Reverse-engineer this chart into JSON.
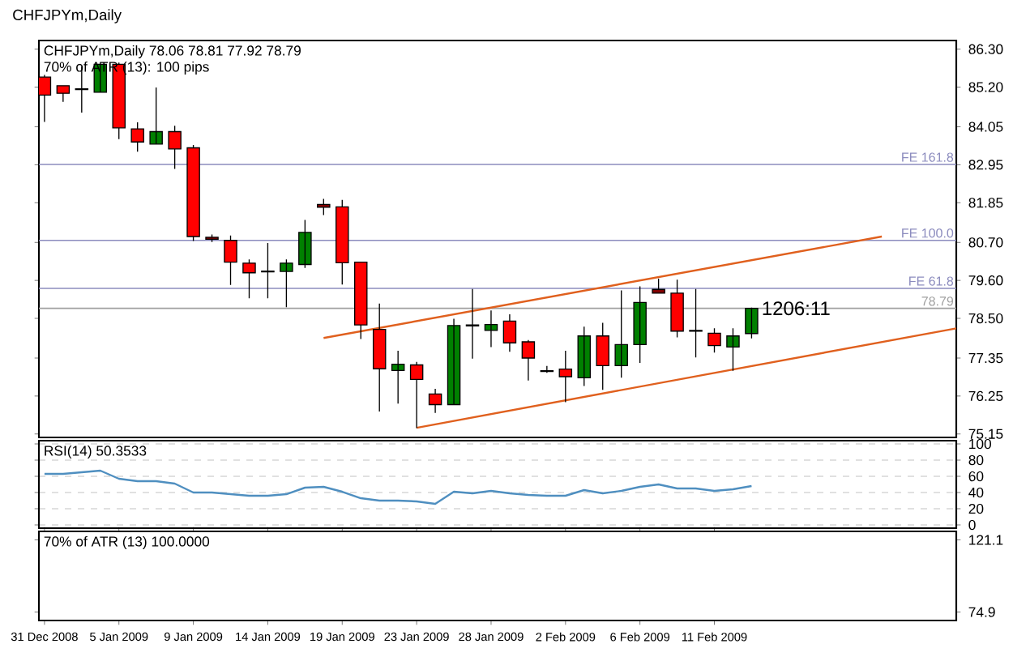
{
  "chart_data": [
    {
      "type": "candlestick",
      "title": "CHFJPYm,Daily",
      "subtitle": "CHFJPYm,Daily  78.06 78.81 77.92 78.79",
      "annotations": [
        "70% of ATR (13): 100 pips",
        "1206:11"
      ],
      "categories": [
        null,
        null,
        null,
        null,
        null,
        null,
        null,
        null,
        null,
        null,
        null,
        null,
        null,
        null,
        null,
        null,
        null,
        null,
        null,
        null,
        null,
        null,
        null,
        null,
        null,
        null,
        null,
        null,
        null,
        null,
        null,
        null,
        null,
        null,
        null,
        null,
        null,
        null,
        null,
        null,
        null,
        null,
        null,
        null,
        null,
        null,
        null,
        null,
        null,
        null
      ],
      "ohlc": [
        [
          85.49,
          85.55,
          84.19,
          84.97
        ],
        [
          85.24,
          85.24,
          84.77,
          85.02
        ],
        [
          85.13,
          85.8,
          84.46,
          85.15
        ],
        [
          85.05,
          85.91,
          85.05,
          85.86
        ],
        [
          85.86,
          85.91,
          83.69,
          84.02
        ],
        [
          83.99,
          84.18,
          83.33,
          83.61
        ],
        [
          83.55,
          85.19,
          83.55,
          83.91
        ],
        [
          83.91,
          84.08,
          82.83,
          83.41
        ],
        [
          83.44,
          83.52,
          80.74,
          80.87
        ],
        [
          80.85,
          80.93,
          80.71,
          80.79
        ],
        [
          80.76,
          80.9,
          79.47,
          80.13
        ],
        [
          80.1,
          80.21,
          79.08,
          79.82
        ],
        [
          79.85,
          80.68,
          79.08,
          79.87
        ],
        [
          79.86,
          80.21,
          78.82,
          80.1
        ],
        [
          80.06,
          81.35,
          79.96,
          80.99
        ],
        [
          81.8,
          81.96,
          81.49,
          81.72
        ],
        [
          81.73,
          81.93,
          79.48,
          80.11
        ],
        [
          80.13,
          80.13,
          77.9,
          78.31
        ],
        [
          78.18,
          78.93,
          75.8,
          77.04
        ],
        [
          76.99,
          77.56,
          76.03,
          77.17
        ],
        [
          77.15,
          77.24,
          75.32,
          76.73
        ],
        [
          76.31,
          76.46,
          75.76,
          76.0
        ],
        [
          76.0,
          78.49,
          76.0,
          78.29
        ],
        [
          78.31,
          79.35,
          77.33,
          78.28
        ],
        [
          78.15,
          78.73,
          77.67,
          78.32
        ],
        [
          78.42,
          78.62,
          77.53,
          77.79
        ],
        [
          77.82,
          77.87,
          76.7,
          77.35
        ],
        [
          76.96,
          77.12,
          76.92,
          76.98
        ],
        [
          77.03,
          77.56,
          76.07,
          76.81
        ],
        [
          76.78,
          78.26,
          76.54,
          77.99
        ],
        [
          77.99,
          78.37,
          76.43,
          77.13
        ],
        [
          77.13,
          79.31,
          76.78,
          77.74
        ],
        [
          77.74,
          79.43,
          77.21,
          78.96
        ],
        [
          79.34,
          79.65,
          79.23,
          79.23
        ],
        [
          79.23,
          79.62,
          77.95,
          78.13
        ],
        [
          78.13,
          79.35,
          77.37,
          78.15
        ],
        [
          78.07,
          78.21,
          77.51,
          77.71
        ],
        [
          77.67,
          78.21,
          76.98,
          77.99
        ],
        [
          78.06,
          78.81,
          77.92,
          78.79
        ],
        null,
        null,
        null,
        null,
        null,
        null,
        null,
        null,
        null,
        null,
        null
      ],
      "colors": [
        "#ff0000",
        "#ff0000",
        "#000000",
        "#008000",
        "#ff0000",
        "#ff0000",
        "#008000",
        "#ff0000",
        "#ff0000",
        "#800000",
        "#ff0000",
        "#ff0000",
        "#000000",
        "#008000",
        "#008000",
        "#800000",
        "#ff0000",
        "#ff0000",
        "#ff0000",
        "#008000",
        "#ff0000",
        "#ff0000",
        "#008000",
        "#800000",
        "#008000",
        "#ff0000",
        "#ff0000",
        "#000000",
        "#ff0000",
        "#008000",
        "#ff0000",
        "#008000",
        "#008000",
        "#800000",
        "#ff0000",
        "#000000",
        "#ff0000",
        "#008000",
        "#008000",
        null,
        null,
        null,
        null,
        null,
        null,
        null,
        null,
        null,
        null,
        null
      ],
      "series": [
        {
          "type": "line",
          "color": "#e0601e",
          "values": [
            null,
            null,
            null,
            null,
            null,
            null,
            null,
            null,
            null,
            null,
            null,
            null,
            null,
            null,
            null,
            77.93,
            null,
            null,
            null,
            null,
            null,
            null,
            null,
            null,
            null,
            null,
            null,
            null,
            null,
            null,
            null,
            null,
            null,
            null,
            null,
            null,
            null,
            null,
            null,
            null,
            null,
            null,
            null,
            null,
            null,
            80.87,
            null,
            null,
            null,
            null
          ]
        },
        {
          "type": "line",
          "color": "#e0601e",
          "values": [
            null,
            null,
            null,
            null,
            null,
            null,
            null,
            null,
            null,
            null,
            null,
            null,
            null,
            null,
            null,
            null,
            null,
            null,
            null,
            null,
            75.33,
            null,
            null,
            null,
            null,
            null,
            null,
            null,
            null,
            null,
            null,
            null,
            null,
            null,
            null,
            null,
            null,
            null,
            null,
            null,
            null,
            null,
            null,
            null,
            null,
            null,
            null,
            null,
            null,
            78.21
          ]
        }
      ],
      "ref_lines": [
        {
          "axis": "y",
          "value": 82.96,
          "label": "FE 161.8",
          "color": "#8c8cbe"
        },
        {
          "axis": "y",
          "value": 80.76,
          "label": "FE 100.0",
          "color": "#8c8cbe"
        },
        {
          "axis": "y",
          "value": 79.37,
          "label": "FE 61.8",
          "color": "#8c8cbe"
        },
        {
          "axis": "y",
          "value": 78.79,
          "label": "78.79",
          "color": "#a0a0a0"
        }
      ],
      "ylim": [
        75.05,
        86.55
      ],
      "yticks": [
        {
          "value": 86.3,
          "label": "86.30"
        },
        {
          "value": 85.2,
          "label": "85.20"
        },
        {
          "value": 84.05,
          "label": "84.05"
        },
        {
          "value": 82.95,
          "label": "82.95"
        },
        {
          "value": 81.85,
          "label": "81.85"
        },
        {
          "value": 80.7,
          "label": "80.70"
        },
        {
          "value": 79.6,
          "label": "79.60"
        },
        {
          "value": 78.5,
          "label": "78.50"
        },
        {
          "value": 77.35,
          "label": "77.35"
        },
        {
          "value": 76.25,
          "label": "76.25"
        },
        {
          "value": 75.15,
          "label": "75.15"
        }
      ],
      "tick_labels": "y"
    },
    {
      "type": "line",
      "title": "RSI(14) 50.3533",
      "categories": [
        null,
        null,
        null,
        null,
        null,
        null,
        null,
        null,
        null,
        null,
        null,
        null,
        null,
        null,
        null,
        null,
        null,
        null,
        null,
        null,
        null,
        null,
        null,
        null,
        null,
        null,
        null,
        null,
        null,
        null,
        null,
        null,
        null,
        null,
        null,
        null,
        null,
        null,
        null,
        null,
        null,
        null,
        null,
        null,
        null,
        null,
        null,
        null,
        null,
        null
      ],
      "series": [
        {
          "color": "#4f8fc0",
          "values": [
            63,
            63,
            65,
            67,
            57,
            54,
            54,
            51,
            40,
            40,
            38,
            36,
            36,
            38,
            46,
            47,
            41,
            33,
            30,
            30,
            29,
            26,
            41,
            39,
            42,
            39,
            37,
            36,
            36,
            43,
            39,
            42,
            47,
            50,
            45,
            45,
            42,
            44,
            48,
            null,
            null,
            null,
            null,
            null,
            null,
            null,
            null,
            null,
            null,
            null
          ]
        }
      ],
      "ylim": [
        -4,
        104
      ],
      "yticks": [
        100,
        80,
        60,
        40,
        20,
        0
      ],
      "grid": "y",
      "tick_labels": "y"
    },
    {
      "type": "line",
      "title": "70% of ATR (13) 100.0000",
      "categories": [
        "31 Dec 2008",
        null,
        null,
        null,
        "5 Jan 2009",
        null,
        null,
        null,
        "9 Jan 2009",
        null,
        null,
        null,
        "14 Jan 2009",
        null,
        null,
        null,
        "19 Jan 2009",
        null,
        null,
        null,
        "23 Jan 2009",
        null,
        null,
        null,
        "28 Jan 2009",
        null,
        null,
        null,
        "2 Feb 2009",
        null,
        null,
        null,
        "6 Feb 2009",
        null,
        null,
        null,
        "11 Feb 2009",
        null,
        null,
        null,
        null,
        null,
        null,
        null,
        null,
        null,
        null,
        null,
        null,
        null
      ],
      "values": [
        null,
        null,
        null,
        null,
        null,
        null,
        null,
        null,
        null,
        null,
        null,
        null,
        null,
        null,
        null,
        null,
        null,
        null,
        null,
        null,
        null,
        null,
        null,
        null,
        null,
        null,
        null,
        null,
        null,
        null,
        null,
        null,
        null,
        null,
        null,
        null,
        null,
        null,
        null,
        null,
        null,
        null,
        null,
        null,
        null,
        null,
        null,
        null,
        null,
        null
      ],
      "ylim": [
        69.5,
        126.5
      ],
      "yticks": [
        {
          "value": 121.1,
          "label": "121.1"
        },
        {
          "value": 74.9,
          "label": "74.9"
        }
      ]
    }
  ]
}
